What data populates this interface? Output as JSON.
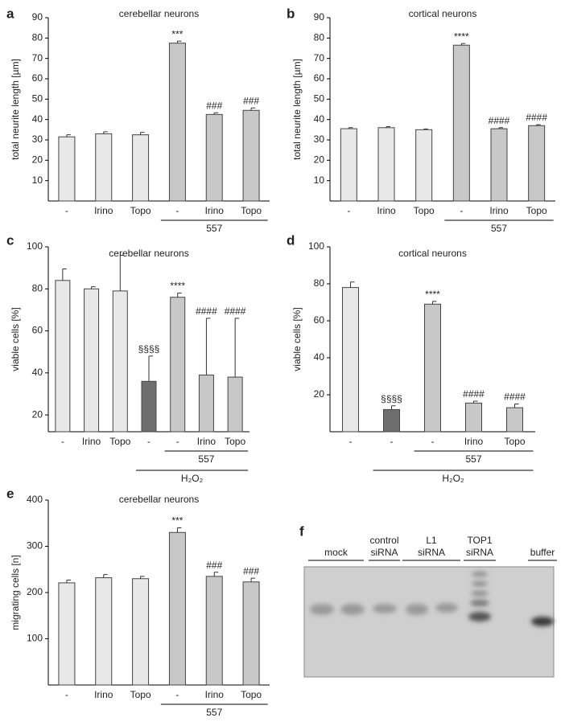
{
  "chart_data": [
    {
      "type": "bar",
      "panel_label": "a",
      "title": "cerebellar neurons",
      "ylabel": "total neurite length [µm]",
      "categories": [
        "-",
        "Irino",
        "Topo",
        "-",
        "Irino",
        "Topo"
      ],
      "values": [
        31.5,
        33,
        32.5,
        77.5,
        42.5,
        44.5
      ],
      "errors": [
        1,
        1,
        1.2,
        1,
        0.8,
        1.2
      ],
      "colors": [
        "#e8e8e8",
        "#e8e8e8",
        "#e8e8e8",
        "#c8c8c8",
        "#c8c8c8",
        "#c8c8c8"
      ],
      "annotations": [
        null,
        null,
        null,
        "***",
        "###",
        "###"
      ],
      "groups": [
        {
          "label": "557",
          "from": 3,
          "to": 5
        }
      ],
      "ylim": [
        0,
        90
      ],
      "yticks": [
        10,
        20,
        30,
        40,
        50,
        60,
        70,
        80,
        90
      ]
    },
    {
      "type": "bar",
      "panel_label": "b",
      "title": "cortical neurons",
      "ylabel": "total neurite length [µm]",
      "categories": [
        "-",
        "Irino",
        "Topo",
        "-",
        "Irino",
        "Topo"
      ],
      "values": [
        35.5,
        36,
        35,
        76.5,
        35.5,
        37
      ],
      "errors": [
        0.5,
        0.5,
        0.4,
        0.8,
        0.5,
        0.5
      ],
      "colors": [
        "#e8e8e8",
        "#e8e8e8",
        "#e8e8e8",
        "#c8c8c8",
        "#c8c8c8",
        "#c8c8c8"
      ],
      "annotations": [
        null,
        null,
        null,
        "****",
        "####",
        "####"
      ],
      "groups": [
        {
          "label": "557",
          "from": 3,
          "to": 5
        }
      ],
      "ylim": [
        0,
        90
      ],
      "yticks": [
        10,
        20,
        30,
        40,
        50,
        60,
        70,
        80,
        90
      ]
    },
    {
      "type": "bar",
      "panel_label": "c",
      "title": "cerebellar neurons",
      "ylabel": "viable cells [%]",
      "categories": [
        "-",
        "Irino",
        "Topo",
        "-",
        "-",
        "Irino",
        "Topo"
      ],
      "values": [
        84,
        80,
        79,
        36,
        76,
        39,
        38
      ],
      "errors": [
        5.5,
        1,
        17,
        12,
        2,
        27,
        28
      ],
      "colors": [
        "#e8e8e8",
        "#e8e8e8",
        "#e8e8e8",
        "#6e6e6e",
        "#c8c8c8",
        "#c8c8c8",
        "#c8c8c8"
      ],
      "annotations": [
        null,
        null,
        null,
        "§§§§",
        "****",
        "####",
        "####"
      ],
      "groups": [
        {
          "label": "557",
          "from": 4,
          "to": 6
        },
        {
          "label": "H₂O₂",
          "from": 3,
          "to": 6
        }
      ],
      "ylim": [
        12,
        100
      ],
      "yticks": [
        20,
        40,
        60,
        80,
        100
      ]
    },
    {
      "type": "bar",
      "panel_label": "d",
      "title": "cortical neurons",
      "ylabel": "viable cells [%]",
      "categories": [
        "-",
        "-",
        "-",
        "Irino",
        "Topo"
      ],
      "values": [
        78,
        12,
        69,
        15.5,
        13
      ],
      "errors": [
        3,
        2,
        1.5,
        1,
        2
      ],
      "colors": [
        "#e8e8e8",
        "#6e6e6e",
        "#c8c8c8",
        "#c8c8c8",
        "#c8c8c8"
      ],
      "annotations": [
        null,
        "§§§§",
        "****",
        "####",
        "####"
      ],
      "groups": [
        {
          "label": "557",
          "from": 2,
          "to": 4
        },
        {
          "label": "H₂O₂",
          "from": 1,
          "to": 4
        }
      ],
      "ylim": [
        0,
        100
      ],
      "yticks": [
        20,
        40,
        60,
        80,
        100
      ]
    },
    {
      "type": "bar",
      "panel_label": "e",
      "title": "cerebellar neurons",
      "ylabel": "migrating cells [n]",
      "categories": [
        "-",
        "Irino",
        "Topo",
        "-",
        "Irino",
        "Topo"
      ],
      "values": [
        221,
        232,
        230,
        330,
        235,
        223
      ],
      "errors": [
        6,
        7,
        5,
        10,
        9,
        8
      ],
      "colors": [
        "#e8e8e8",
        "#e8e8e8",
        "#e8e8e8",
        "#c8c8c8",
        "#c8c8c8",
        "#c8c8c8"
      ],
      "annotations": [
        null,
        null,
        null,
        "***",
        "###",
        "###"
      ],
      "groups": [
        {
          "label": "557",
          "from": 3,
          "to": 5
        }
      ],
      "ylim": [
        0,
        400
      ],
      "yticks": [
        100,
        200,
        300,
        400
      ]
    }
  ],
  "gel": {
    "panel_label": "f",
    "lanes": [
      {
        "label": [
          "mock"
        ]
      },
      {
        "label": [
          "control",
          "siRNA"
        ]
      },
      {
        "label": [
          "L1",
          "siRNA"
        ]
      },
      {
        "label": [
          "TOP1",
          "siRNA"
        ]
      },
      {
        "label": [
          "buffer"
        ]
      }
    ]
  }
}
